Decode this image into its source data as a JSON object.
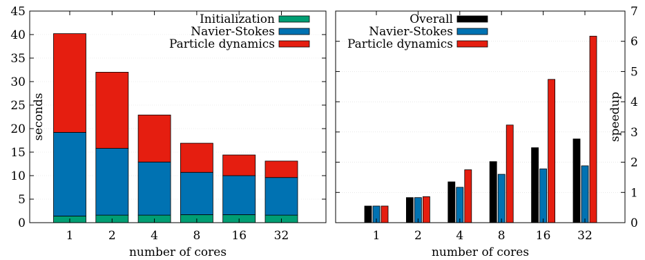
{
  "chart_data": [
    {
      "type": "bar",
      "stacked": true,
      "categories": [
        "1",
        "2",
        "4",
        "8",
        "16",
        "32"
      ],
      "series": [
        {
          "name": "Initialization",
          "color": "#009e73",
          "values": [
            1.4,
            1.6,
            1.6,
            1.7,
            1.7,
            1.6
          ]
        },
        {
          "name": "Navier-Stokes",
          "color": "#0072b2",
          "values": [
            17.8,
            14.2,
            11.3,
            9.0,
            8.3,
            8.0
          ]
        },
        {
          "name": "Particle dynamics",
          "color": "#e51e10",
          "values": [
            21.0,
            16.2,
            10.0,
            6.2,
            4.4,
            3.5
          ]
        }
      ],
      "xlabel": "number of cores",
      "ylabel": "seconds",
      "ylim": [
        0,
        45
      ],
      "yticks": [
        "0",
        "5",
        "10",
        "15",
        "20",
        "25",
        "30",
        "35",
        "40",
        "45"
      ],
      "grid": true,
      "legend_position": "top-right"
    },
    {
      "type": "bar",
      "stacked": false,
      "categories": [
        "1",
        "2",
        "4",
        "8",
        "16",
        "32"
      ],
      "series": [
        {
          "name": "Overall",
          "color": "#000000",
          "values": [
            0.55,
            0.83,
            1.35,
            2.02,
            2.48,
            2.77
          ]
        },
        {
          "name": "Navier-Stokes",
          "color": "#0072b2",
          "values": [
            0.55,
            0.83,
            1.17,
            1.6,
            1.78,
            1.88
          ]
        },
        {
          "name": "Particle dynamics",
          "color": "#e51e10",
          "values": [
            0.55,
            0.86,
            1.75,
            3.23,
            4.74,
            6.17
          ]
        }
      ],
      "xlabel": "number of cores",
      "ylabel": "speedup",
      "ylim": [
        0,
        7
      ],
      "yticks": [
        "0",
        "1",
        "2",
        "3",
        "4",
        "5",
        "6",
        "7"
      ],
      "grid": true,
      "legend_position": "top-right"
    }
  ]
}
